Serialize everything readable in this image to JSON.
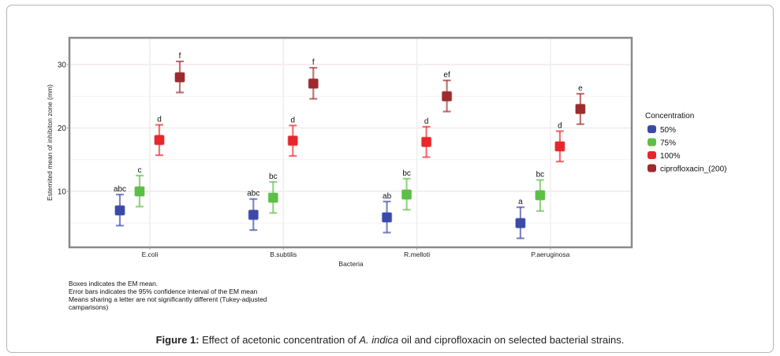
{
  "chart_data": {
    "type": "scatter",
    "subtype": "point-with-errorbars",
    "title": "",
    "xlabel": "Bacteria",
    "ylabel": "Estemited mean of  inhibiton zone (mm)",
    "categories": [
      "E.coli",
      "B.subtilis",
      "R.melloti",
      "P.aeruginosa"
    ],
    "yticks": [
      10,
      20,
      30
    ],
    "ylim": [
      1,
      34
    ],
    "grid": true,
    "legend": {
      "title": "Concentration",
      "position": "right"
    },
    "series": [
      {
        "name": "50%",
        "color": "#3b4aa8",
        "values": [
          7.0,
          6.3,
          5.9,
          5.0
        ],
        "ci_low": [
          4.6,
          3.9,
          3.5,
          2.6
        ],
        "ci_high": [
          9.5,
          8.8,
          8.4,
          7.5
        ],
        "letters": [
          "abc",
          "abc",
          "ab",
          "a"
        ]
      },
      {
        "name": "75%",
        "color": "#5cbf46",
        "values": [
          10.0,
          9.0,
          9.5,
          9.4
        ],
        "ci_low": [
          7.6,
          6.6,
          7.1,
          6.9
        ],
        "ci_high": [
          12.5,
          11.5,
          12.0,
          11.8
        ],
        "letters": [
          "c",
          "bc",
          "bc",
          "bc"
        ]
      },
      {
        "name": "100%",
        "color": "#e8262b",
        "values": [
          18.1,
          18.0,
          17.8,
          17.1
        ],
        "ci_low": [
          15.7,
          15.6,
          15.4,
          14.7
        ],
        "ci_high": [
          20.5,
          20.4,
          20.2,
          19.5
        ],
        "letters": [
          "d",
          "d",
          "d",
          "d"
        ]
      },
      {
        "name": "ciprofloxacin_(200)",
        "color": "#9c2b2e",
        "values": [
          28.0,
          27.0,
          25.0,
          23.0
        ],
        "ci_low": [
          25.6,
          24.6,
          22.6,
          20.6
        ],
        "ci_high": [
          30.5,
          29.5,
          27.5,
          25.4
        ],
        "letters": [
          "f",
          "f",
          "ef",
          "e"
        ]
      }
    ]
  },
  "notes": [
    "Boxes indicates the EM mean.",
    "Error  bars  indicates  the 95% confidence interval  of the  EM mean",
    "Means sharing a letter  are not  significantly different (Tukey-adjusted",
    "camparisons)"
  ],
  "caption": {
    "label": "Figure 1:",
    "text_before": " Effect of acetonic concentration of ",
    "italic": "A. indica",
    "text_after": " oil and ciprofloxacin on selected bacterial strains."
  }
}
